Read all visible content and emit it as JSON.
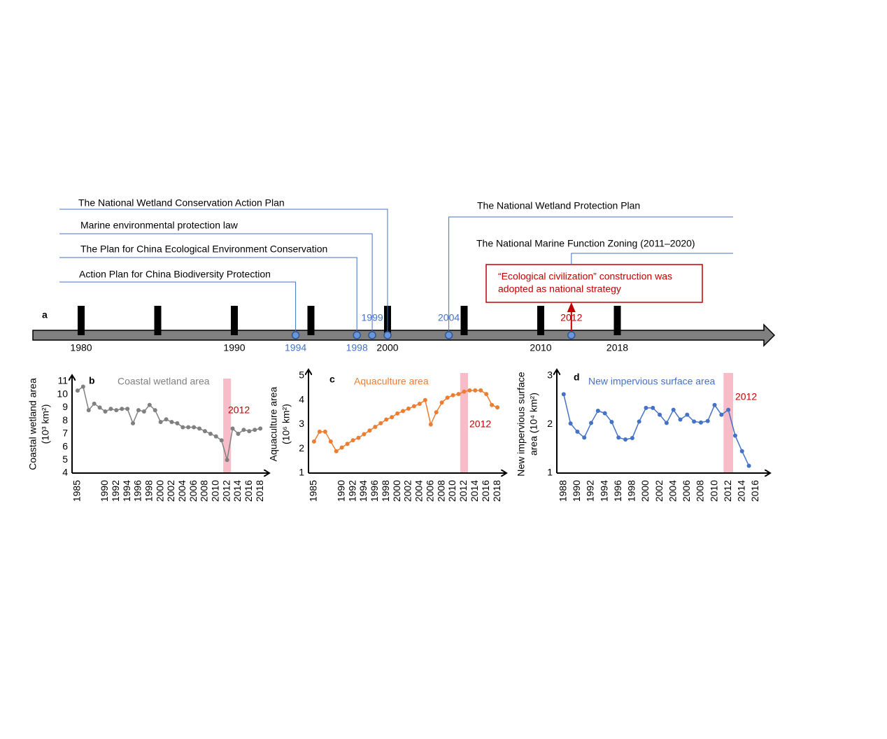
{
  "timeline": {
    "panel": "a",
    "ticks": [
      1980,
      1985,
      1990,
      1995,
      2000,
      2005,
      2010,
      2015
    ],
    "tick_labels": [
      "1980",
      "1990",
      "2000",
      "2010",
      "2018"
    ],
    "events": [
      {
        "year": 1994,
        "title": "Action Plan for China Biodiversity Protection"
      },
      {
        "year": 1998,
        "title": "The Plan for China Ecological Environment Conservation"
      },
      {
        "year": 1999,
        "title": "Marine environmental protection law"
      },
      {
        "year": 2000,
        "title": "The National Wetland Conservation Action Plan"
      },
      {
        "year": 2004,
        "title": "The National Wetland Protection Plan"
      },
      {
        "year": 2012,
        "title": "The National Marine Function Zoning (2011–2020)"
      }
    ],
    "strategy": [
      "“Ecological civilization” construction was",
      "adopted as national strategy"
    ]
  },
  "chart_data": [
    {
      "type": "line",
      "panel": "b",
      "title": "Coastal wetland area",
      "ylabel": [
        "Coastal wetland area",
        "(10³ km²)"
      ],
      "color": "#808080",
      "x": [
        1985,
        1986,
        1987,
        1988,
        1989,
        1990,
        1991,
        1992,
        1993,
        1994,
        1995,
        1996,
        1997,
        1998,
        1999,
        2000,
        2001,
        2002,
        2003,
        2004,
        2005,
        2006,
        2007,
        2008,
        2009,
        2010,
        2011,
        2012,
        2013,
        2014,
        2015,
        2016,
        2017,
        2018
      ],
      "values": [
        10.3,
        10.6,
        8.8,
        9.3,
        9.0,
        8.7,
        8.9,
        8.8,
        8.9,
        8.9,
        7.8,
        8.8,
        8.7,
        9.2,
        8.8,
        7.9,
        8.1,
        7.9,
        7.8,
        7.5,
        7.5,
        7.5,
        7.4,
        7.2,
        7.0,
        6.8,
        6.5,
        5.0,
        7.4,
        7.0,
        7.3,
        7.2,
        7.3,
        7.4
      ],
      "xlim": [
        1984,
        2019.5
      ],
      "xticks": [
        1985,
        1990,
        1992,
        1994,
        1996,
        1998,
        2000,
        2002,
        2004,
        2006,
        2008,
        2010,
        2012,
        2014,
        2016,
        2018
      ],
      "ylim": [
        4,
        11
      ],
      "yticks": [
        4,
        5,
        6,
        7,
        8,
        9,
        10,
        11
      ],
      "highlight_year": 2012
    },
    {
      "type": "line",
      "panel": "c",
      "title": "Aquaculture area",
      "ylabel": [
        "Aquaculture area",
        "(10⁶ km²)"
      ],
      "color": "#ed7d31",
      "x": [
        1985,
        1986,
        1987,
        1988,
        1989,
        1990,
        1991,
        1992,
        1993,
        1994,
        1995,
        1996,
        1997,
        1998,
        1999,
        2000,
        2001,
        2002,
        2003,
        2004,
        2005,
        2006,
        2007,
        2008,
        2009,
        2010,
        2011,
        2012,
        2013,
        2014,
        2015,
        2016,
        2017,
        2018
      ],
      "values": [
        2.3,
        2.7,
        2.7,
        2.3,
        1.9,
        2.05,
        2.2,
        2.35,
        2.45,
        2.6,
        2.75,
        2.9,
        3.05,
        3.2,
        3.3,
        3.45,
        3.55,
        3.65,
        3.75,
        3.85,
        4.0,
        3.0,
        3.5,
        3.9,
        4.1,
        4.2,
        4.25,
        4.35,
        4.4,
        4.4,
        4.4,
        4.25,
        3.8,
        3.7
      ],
      "xlim": [
        1984,
        2019.5
      ],
      "xticks": [
        1985,
        1990,
        1992,
        1994,
        1996,
        1998,
        2000,
        2002,
        2004,
        2006,
        2008,
        2010,
        2012,
        2014,
        2016,
        2018
      ],
      "ylim": [
        1,
        5
      ],
      "yticks": [
        1,
        2,
        3,
        4,
        5
      ],
      "highlight_year": 2012
    },
    {
      "type": "line",
      "panel": "d",
      "title": "New impervious surface area",
      "ylabel": [
        "New impervious surface",
        "area (10⁴ km²)"
      ],
      "color": "#4472c4",
      "x": [
        1988,
        1989,
        1990,
        1991,
        1992,
        1993,
        1994,
        1995,
        1996,
        1997,
        1998,
        1999,
        2000,
        2001,
        2002,
        2003,
        2004,
        2005,
        2006,
        2007,
        2008,
        2009,
        2010,
        2011,
        2012,
        2013,
        2014,
        2015
      ],
      "values": [
        2.62,
        2.02,
        1.85,
        1.73,
        2.03,
        2.28,
        2.23,
        2.05,
        1.73,
        1.69,
        1.72,
        2.06,
        2.34,
        2.34,
        2.2,
        2.03,
        2.3,
        2.1,
        2.2,
        2.06,
        2.04,
        2.07,
        2.4,
        2.2,
        2.3,
        1.77,
        1.45,
        1.15
      ],
      "xlim": [
        1987,
        2018
      ],
      "xticks": [
        1988,
        1990,
        1992,
        1994,
        1996,
        1998,
        2000,
        2002,
        2004,
        2006,
        2008,
        2010,
        2012,
        2014,
        2016
      ],
      "ylim": [
        1,
        3
      ],
      "yticks": [
        1,
        2,
        3
      ],
      "highlight_year": 2012
    }
  ]
}
